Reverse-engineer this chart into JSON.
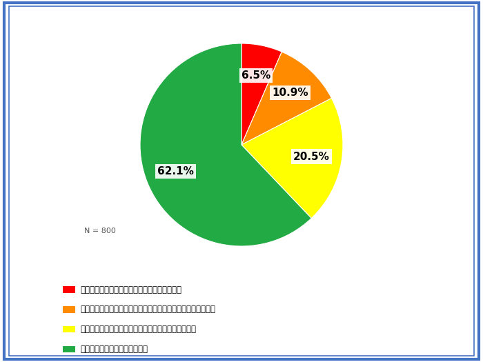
{
  "title": "",
  "values": [
    6.5,
    10.9,
    20.5,
    62.1
  ],
  "labels": [
    "6.5%",
    "10.9%",
    "20.5%",
    "62.1%"
  ],
  "colors": [
    "#FF0000",
    "#FF8C00",
    "#FFFF00",
    "#22AA44"
  ],
  "legend_labels": [
    "救急搬送や医療機関で診療を受けたことがある",
    "医療機関で診療を受けていないが熱中症にかかったことがある",
    "熱中症にかかっていないが、危険を感じたことがある",
    "熱中症にはかかったことがない"
  ],
  "legend_colors": [
    "#FF0000",
    "#FF8C00",
    "#FFFF00",
    "#22AA44"
  ],
  "n_label": "N = 800",
  "background_color": "#FFFFFF",
  "border_color": "#4472C4",
  "startangle": 90,
  "figsize": [
    7.0,
    5.25
  ],
  "dpi": 100
}
